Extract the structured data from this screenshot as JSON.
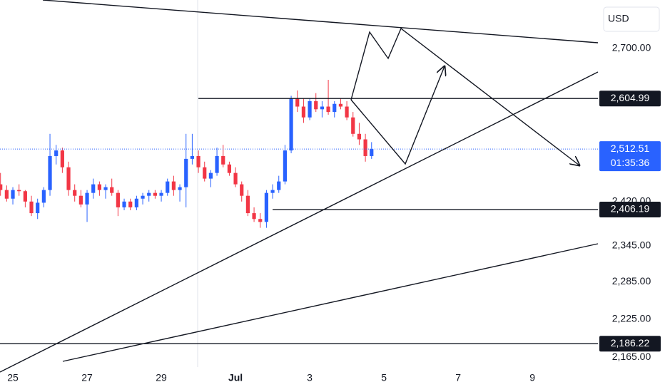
{
  "chart_data": {
    "type": "candlestick",
    "currency": "USD",
    "log_scale": true,
    "up_color": "#2962ff",
    "down_color": "#f23645",
    "open": [
      2450,
      2440,
      2425,
      2440,
      2438,
      2420,
      2400,
      2418,
      2440,
      2500,
      2510,
      2480,
      2440,
      2430,
      2415,
      2435,
      2450,
      2440,
      2445,
      2435,
      2410,
      2420,
      2410,
      2425,
      2430,
      2435,
      2430,
      2435,
      2455,
      2440,
      2445,
      2495,
      2500,
      2480,
      2460,
      2470,
      2500,
      2485,
      2470,
      2450,
      2430,
      2400,
      2390,
      2385,
      2435,
      2440,
      2455,
      2510,
      2605,
      2590,
      2570,
      2600,
      2585,
      2590,
      2580,
      2595,
      2590,
      2570,
      2540,
      2530,
      2500
    ],
    "high": [
      2470,
      2448,
      2445,
      2450,
      2440,
      2430,
      2425,
      2445,
      2540,
      2520,
      2515,
      2490,
      2450,
      2440,
      2440,
      2460,
      2455,
      2450,
      2460,
      2440,
      2425,
      2425,
      2430,
      2435,
      2440,
      2440,
      2440,
      2460,
      2465,
      2450,
      2540,
      2540,
      2510,
      2490,
      2475,
      2515,
      2520,
      2490,
      2480,
      2455,
      2440,
      2410,
      2400,
      2440,
      2450,
      2465,
      2520,
      2610,
      2620,
      2605,
      2605,
      2615,
      2600,
      2640,
      2600,
      2605,
      2600,
      2580,
      2560,
      2540,
      2525
    ],
    "low": [
      2430,
      2420,
      2415,
      2430,
      2410,
      2395,
      2390,
      2410,
      2430,
      2485,
      2470,
      2430,
      2420,
      2410,
      2385,
      2425,
      2430,
      2425,
      2430,
      2395,
      2405,
      2405,
      2405,
      2415,
      2420,
      2425,
      2420,
      2430,
      2430,
      2420,
      2410,
      2485,
      2470,
      2455,
      2445,
      2465,
      2480,
      2465,
      2445,
      2420,
      2395,
      2385,
      2375,
      2375,
      2425,
      2435,
      2450,
      2505,
      2580,
      2560,
      2565,
      2580,
      2570,
      2575,
      2570,
      2585,
      2565,
      2535,
      2520,
      2490,
      2495
    ],
    "close": [
      2440,
      2425,
      2440,
      2438,
      2420,
      2400,
      2418,
      2440,
      2500,
      2510,
      2480,
      2440,
      2430,
      2415,
      2435,
      2450,
      2440,
      2445,
      2435,
      2410,
      2420,
      2410,
      2425,
      2430,
      2435,
      2430,
      2435,
      2455,
      2440,
      2445,
      2495,
      2500,
      2480,
      2460,
      2470,
      2500,
      2485,
      2470,
      2450,
      2430,
      2400,
      2390,
      2385,
      2435,
      2440,
      2455,
      2510,
      2605,
      2590,
      2570,
      2600,
      2585,
      2590,
      2580,
      2595,
      2590,
      2570,
      2540,
      2530,
      2500,
      2512.51
    ],
    "xlim": [
      -0.08,
      96.6
    ],
    "xticks": [
      {
        "value": 2,
        "label": "25"
      },
      {
        "value": 14,
        "label": "27"
      },
      {
        "value": 26,
        "label": "29"
      },
      {
        "value": 38,
        "label": "Jul"
      },
      {
        "value": 50,
        "label": "3"
      },
      {
        "value": 62,
        "label": "5"
      },
      {
        "value": 74,
        "label": "7"
      },
      {
        "value": 86,
        "label": "9"
      }
    ],
    "ylim": [
      2150,
      2795
    ],
    "yticks": [
      {
        "value": 2700,
        "label": "2,700.00"
      },
      {
        "value": 2420,
        "label": "2,420.00"
      },
      {
        "value": 2345,
        "label": "2,345.00"
      },
      {
        "value": 2285,
        "label": "2,285.00"
      },
      {
        "value": 2225,
        "label": "2,225.00"
      },
      {
        "value": 2165,
        "label": "2,165.00"
      }
    ],
    "price_lines": [
      {
        "value": 2604.99,
        "label": "2,604.99",
        "start": 32
      },
      {
        "value": 2406.19,
        "label": "2,406.19",
        "start": 44
      },
      {
        "value": 2186.22,
        "label": "2,186.22",
        "start": -0.08
      },
      {
        "value": 2512.51,
        "label": "2,512.51",
        "countdown": "01:35:36",
        "start": -0.08,
        "current": true
      }
    ]
  }
}
